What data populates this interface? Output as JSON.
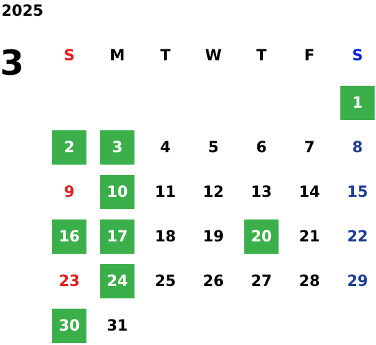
{
  "calendar": {
    "year": "2025",
    "month": "3",
    "weekdays": [
      "S",
      "M",
      "T",
      "W",
      "T",
      "F",
      "S"
    ],
    "weekday_colors": [
      "#e8161a",
      "#000000",
      "#000000",
      "#000000",
      "#000000",
      "#000000",
      "#0a1fd1"
    ],
    "weekday_day_colors": [
      "#e02020",
      "#000000",
      "#000000",
      "#000000",
      "#000000",
      "#000000",
      "#1b3d93"
    ],
    "highlight_color": "#3bb04a",
    "weeks": [
      [
        null,
        null,
        null,
        null,
        null,
        null,
        {
          "day": "1",
          "highlighted": true
        }
      ],
      [
        {
          "day": "2",
          "highlighted": true
        },
        {
          "day": "3",
          "highlighted": true
        },
        {
          "day": "4",
          "highlighted": false
        },
        {
          "day": "5",
          "highlighted": false
        },
        {
          "day": "6",
          "highlighted": false
        },
        {
          "day": "7",
          "highlighted": false
        },
        {
          "day": "8",
          "highlighted": false
        }
      ],
      [
        {
          "day": "9",
          "highlighted": false
        },
        {
          "day": "10",
          "highlighted": true
        },
        {
          "day": "11",
          "highlighted": false
        },
        {
          "day": "12",
          "highlighted": false
        },
        {
          "day": "13",
          "highlighted": false
        },
        {
          "day": "14",
          "highlighted": false
        },
        {
          "day": "15",
          "highlighted": false
        }
      ],
      [
        {
          "day": "16",
          "highlighted": true
        },
        {
          "day": "17",
          "highlighted": true
        },
        {
          "day": "18",
          "highlighted": false
        },
        {
          "day": "19",
          "highlighted": false
        },
        {
          "day": "20",
          "highlighted": true
        },
        {
          "day": "21",
          "highlighted": false
        },
        {
          "day": "22",
          "highlighted": false
        }
      ],
      [
        {
          "day": "23",
          "highlighted": false
        },
        {
          "day": "24",
          "highlighted": true
        },
        {
          "day": "25",
          "highlighted": false
        },
        {
          "day": "26",
          "highlighted": false
        },
        {
          "day": "27",
          "highlighted": false
        },
        {
          "day": "28",
          "highlighted": false
        },
        {
          "day": "29",
          "highlighted": false
        }
      ],
      [
        {
          "day": "30",
          "highlighted": true
        },
        {
          "day": "31",
          "highlighted": false
        },
        null,
        null,
        null,
        null,
        null
      ]
    ]
  }
}
